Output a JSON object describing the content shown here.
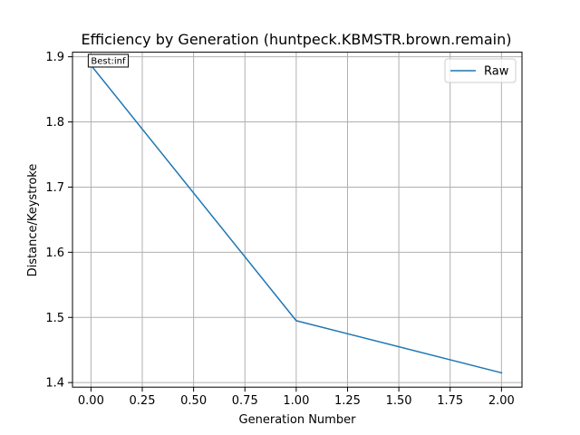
{
  "chart_data": {
    "type": "line",
    "title": "Efficiency by Generation (huntpeck.KBMSTR.brown.remain)",
    "xlabel": "Generation Number",
    "ylabel": "Distance/Keystroke",
    "xlim": [
      -0.09,
      2.1
    ],
    "ylim": [
      1.393,
      1.907
    ],
    "xticks": [
      0.0,
      0.25,
      0.5,
      0.75,
      1.0,
      1.25,
      1.5,
      1.75,
      2.0
    ],
    "xtick_labels": [
      "0.00",
      "0.25",
      "0.50",
      "0.75",
      "1.00",
      "1.25",
      "1.50",
      "1.75",
      "2.00"
    ],
    "yticks": [
      1.4,
      1.5,
      1.6,
      1.7,
      1.8,
      1.9
    ],
    "ytick_labels": [
      "1.4",
      "1.5",
      "1.6",
      "1.7",
      "1.8",
      "1.9"
    ],
    "grid": true,
    "legend_position": "top-right",
    "series": [
      {
        "name": "Raw",
        "color": "#1f77b4",
        "x": [
          0,
          1,
          2
        ],
        "y": [
          1.887,
          1.495,
          1.415
        ]
      }
    ],
    "annotations": [
      {
        "text": "Best:inf",
        "x": 0,
        "y": 1.887
      }
    ]
  }
}
